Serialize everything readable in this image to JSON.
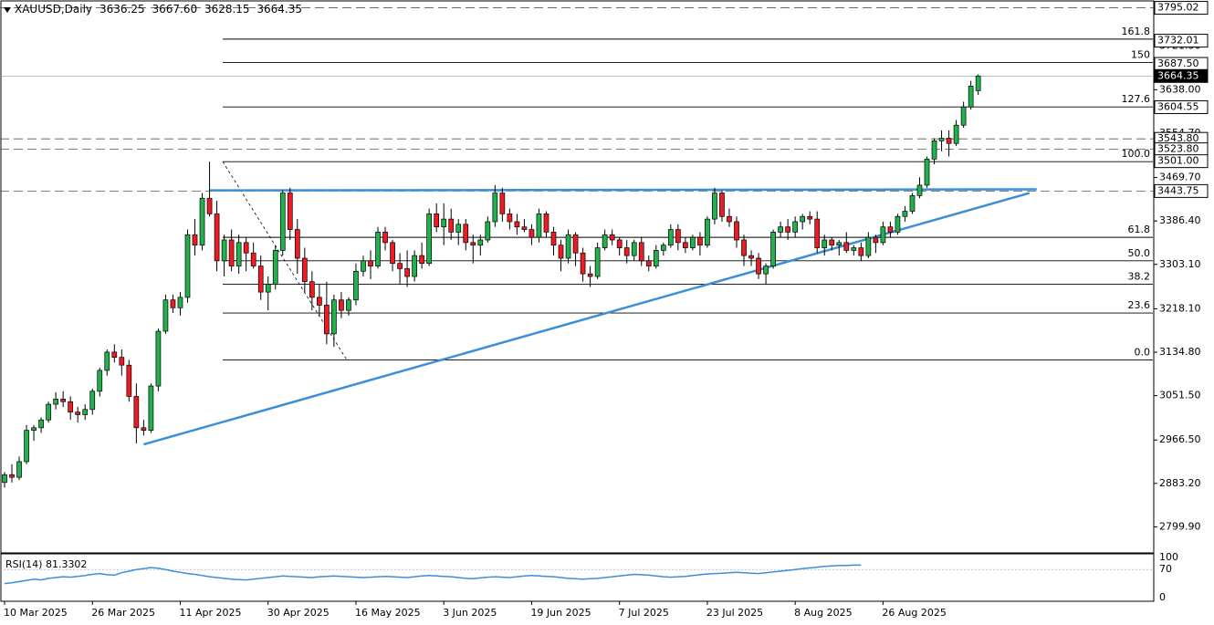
{
  "header": {
    "symbol": "XAUUSD,Daily",
    "open": "3636.25",
    "high": "3667.60",
    "low": "3628.15",
    "close": "3664.35"
  },
  "rsi": {
    "label": "RSI(14) 81.3302",
    "levels": [
      "100",
      "70",
      "0"
    ],
    "values": [
      35,
      37,
      40,
      43,
      46,
      44,
      48,
      50,
      52,
      51,
      53,
      55,
      58,
      60,
      57,
      56,
      62,
      66,
      70,
      72,
      75,
      73,
      70,
      66,
      63,
      60,
      58,
      55,
      52,
      50,
      48,
      46,
      45,
      44,
      46,
      48,
      50,
      52,
      54,
      53,
      52,
      51,
      50,
      52,
      53,
      54,
      53,
      52,
      51,
      50,
      51,
      52,
      53,
      52,
      51,
      50,
      52,
      54,
      55,
      54,
      53,
      52,
      50,
      48,
      47,
      49,
      51,
      52,
      51,
      50,
      52,
      54,
      55,
      54,
      53,
      52,
      50,
      48,
      47,
      46,
      47,
      48,
      50,
      52,
      54,
      56,
      58,
      57,
      56,
      54,
      52,
      51,
      52,
      53,
      55,
      57,
      59,
      60,
      61,
      62,
      63,
      62,
      61,
      60,
      62,
      64,
      66,
      68,
      70,
      72,
      74,
      76,
      78,
      79,
      80,
      80,
      81,
      81
    ]
  },
  "colors": {
    "bull": "#22b14c",
    "bear": "#ed1c24",
    "trend": "#3a8fd9",
    "rsi": "#3a8fd9"
  },
  "chart_data": {
    "type": "candlestick",
    "symbol": "XAUUSD",
    "timeframe": "Daily",
    "ylim": [
      2750,
      3810
    ],
    "y_ticks": [
      "3795.02",
      "3721.30",
      "3638.00",
      "3554.70",
      "3469.70",
      "3386.40",
      "3303.10",
      "3218.10",
      "3134.80",
      "3051.50",
      "2966.50",
      "2883.20",
      "2799.90"
    ],
    "x_labels": [
      "10 Mar 2025",
      "26 Mar 2025",
      "11 Apr 2025",
      "30 Apr 2025",
      "16 May 2025",
      "3 Jun 2025",
      "19 Jun 2025",
      "7 Jul 2025",
      "23 Jul 2025",
      "8 Aug 2025",
      "26 Aug 2025"
    ],
    "price_tags": [
      {
        "label": "3795.02",
        "value": 3795.02,
        "style": "dashed",
        "highlight": false
      },
      {
        "label": "3732.01",
        "value": 3732.01,
        "style": "solid",
        "highlight": false
      },
      {
        "label": "3687.50",
        "value": 3687.5,
        "style": "solid",
        "highlight": false
      },
      {
        "label": "3664.35",
        "value": 3664.35,
        "style": "current",
        "highlight": true
      },
      {
        "label": "3604.55",
        "value": 3604.55,
        "style": "solid",
        "highlight": false
      },
      {
        "label": "3543.80",
        "value": 3543.8,
        "style": "dashed",
        "highlight": false
      },
      {
        "label": "3523.80",
        "value": 3523.8,
        "style": "dashed",
        "highlight": false
      },
      {
        "label": "3501.00",
        "value": 3501.0,
        "style": "solid",
        "highlight": false
      },
      {
        "label": "3443.75",
        "value": 3443.75,
        "style": "dashed",
        "highlight": false
      }
    ],
    "fibonacci": {
      "high": 3500.1,
      "low": 3120.0,
      "levels": [
        {
          "label": "161.8",
          "value": 3735
        },
        {
          "label": "150",
          "value": 3690
        },
        {
          "label": "127.6",
          "value": 3605
        },
        {
          "label": "100.0",
          "value": 3500
        },
        {
          "label": "61.8",
          "value": 3355
        },
        {
          "label": "50.0",
          "value": 3310
        },
        {
          "label": "38.2",
          "value": 3265
        },
        {
          "label": "23.6",
          "value": 3210
        },
        {
          "label": "0.0",
          "value": 3120
        }
      ]
    },
    "trendlines": [
      {
        "name": "resistance",
        "from": {
          "bar": 28,
          "value": 3445
        },
        "to": {
          "bar": 141,
          "value": 3447
        }
      },
      {
        "name": "support",
        "from": {
          "bar": 19,
          "value": 2958
        },
        "to": {
          "bar": 140,
          "value": 3440
        }
      }
    ],
    "candles": [
      [
        2885,
        2905,
        2875,
        2900
      ],
      [
        2900,
        2920,
        2885,
        2895
      ],
      [
        2895,
        2935,
        2890,
        2925
      ],
      [
        2925,
        2995,
        2920,
        2985
      ],
      [
        2985,
        2995,
        2965,
        2990
      ],
      [
        2990,
        3010,
        2980,
        3005
      ],
      [
        3005,
        3040,
        3000,
        3035
      ],
      [
        3035,
        3058,
        3025,
        3045
      ],
      [
        3045,
        3060,
        3030,
        3040
      ],
      [
        3040,
        3050,
        3005,
        3020
      ],
      [
        3020,
        3030,
        3000,
        3015
      ],
      [
        3015,
        3035,
        3005,
        3025
      ],
      [
        3025,
        3065,
        3015,
        3060
      ],
      [
        3060,
        3105,
        3050,
        3100
      ],
      [
        3100,
        3140,
        3090,
        3135
      ],
      [
        3135,
        3150,
        3115,
        3125
      ],
      [
        3125,
        3140,
        3090,
        3110
      ],
      [
        3110,
        3120,
        3040,
        3050
      ],
      [
        3050,
        3075,
        2960,
        2990
      ],
      [
        2990,
        3005,
        2975,
        2985
      ],
      [
        2985,
        3075,
        2980,
        3070
      ],
      [
        3070,
        3180,
        3060,
        3175
      ],
      [
        3175,
        3245,
        3170,
        3235
      ],
      [
        3235,
        3245,
        3210,
        3220
      ],
      [
        3220,
        3250,
        3205,
        3240
      ],
      [
        3240,
        3370,
        3230,
        3360
      ],
      [
        3360,
        3390,
        3320,
        3340
      ],
      [
        3340,
        3440,
        3330,
        3430
      ],
      [
        3430,
        3500,
        3395,
        3400
      ],
      [
        3400,
        3425,
        3290,
        3310
      ],
      [
        3310,
        3360,
        3280,
        3350
      ],
      [
        3350,
        3370,
        3290,
        3300
      ],
      [
        3300,
        3360,
        3285,
        3345
      ],
      [
        3345,
        3355,
        3290,
        3325
      ],
      [
        3325,
        3345,
        3295,
        3300
      ],
      [
        3300,
        3320,
        3235,
        3250
      ],
      [
        3250,
        3280,
        3215,
        3265
      ],
      [
        3265,
        3340,
        3255,
        3330
      ],
      [
        3330,
        3445,
        3320,
        3440
      ],
      [
        3440,
        3450,
        3350,
        3370
      ],
      [
        3370,
        3390,
        3285,
        3315
      ],
      [
        3315,
        3335,
        3250,
        3270
      ],
      [
        3270,
        3290,
        3215,
        3240
      ],
      [
        3240,
        3265,
        3205,
        3225
      ],
      [
        3225,
        3270,
        3150,
        3170
      ],
      [
        3170,
        3245,
        3145,
        3235
      ],
      [
        3235,
        3250,
        3200,
        3215
      ],
      [
        3215,
        3240,
        3205,
        3235
      ],
      [
        3235,
        3305,
        3225,
        3290
      ],
      [
        3290,
        3320,
        3280,
        3310
      ],
      [
        3310,
        3330,
        3275,
        3300
      ],
      [
        3300,
        3375,
        3295,
        3365
      ],
      [
        3365,
        3375,
        3330,
        3345
      ],
      [
        3345,
        3350,
        3290,
        3305
      ],
      [
        3305,
        3325,
        3265,
        3295
      ],
      [
        3295,
        3330,
        3260,
        3280
      ],
      [
        3280,
        3330,
        3270,
        3320
      ],
      [
        3320,
        3345,
        3295,
        3305
      ],
      [
        3305,
        3410,
        3300,
        3400
      ],
      [
        3400,
        3420,
        3365,
        3375
      ],
      [
        3375,
        3420,
        3340,
        3390
      ],
      [
        3390,
        3410,
        3350,
        3365
      ],
      [
        3365,
        3390,
        3340,
        3380
      ],
      [
        3380,
        3390,
        3330,
        3345
      ],
      [
        3345,
        3360,
        3305,
        3340
      ],
      [
        3340,
        3360,
        3320,
        3350
      ],
      [
        3350,
        3395,
        3345,
        3385
      ],
      [
        3385,
        3455,
        3375,
        3440
      ],
      [
        3440,
        3450,
        3385,
        3400
      ],
      [
        3400,
        3410,
        3370,
        3385
      ],
      [
        3385,
        3400,
        3360,
        3375
      ],
      [
        3375,
        3390,
        3365,
        3370
      ],
      [
        3370,
        3380,
        3340,
        3355
      ],
      [
        3355,
        3410,
        3345,
        3400
      ],
      [
        3400,
        3405,
        3355,
        3365
      ],
      [
        3365,
        3375,
        3320,
        3340
      ],
      [
        3340,
        3350,
        3290,
        3315
      ],
      [
        3315,
        3370,
        3305,
        3360
      ],
      [
        3360,
        3365,
        3300,
        3325
      ],
      [
        3325,
        3335,
        3270,
        3285
      ],
      [
        3285,
        3300,
        3260,
        3280
      ],
      [
        3280,
        3345,
        3275,
        3335
      ],
      [
        3335,
        3370,
        3330,
        3360
      ],
      [
        3360,
        3370,
        3340,
        3350
      ],
      [
        3350,
        3355,
        3320,
        3335
      ],
      [
        3335,
        3350,
        3305,
        3320
      ],
      [
        3320,
        3350,
        3310,
        3345
      ],
      [
        3345,
        3355,
        3300,
        3310
      ],
      [
        3310,
        3320,
        3290,
        3300
      ],
      [
        3300,
        3340,
        3295,
        3330
      ],
      [
        3330,
        3345,
        3320,
        3340
      ],
      [
        3340,
        3380,
        3335,
        3370
      ],
      [
        3370,
        3380,
        3330,
        3345
      ],
      [
        3345,
        3355,
        3325,
        3335
      ],
      [
        3335,
        3360,
        3330,
        3355
      ],
      [
        3355,
        3365,
        3320,
        3340
      ],
      [
        3340,
        3395,
        3335,
        3390
      ],
      [
        3390,
        3450,
        3380,
        3440
      ],
      [
        3440,
        3445,
        3385,
        3395
      ],
      [
        3395,
        3410,
        3375,
        3385
      ],
      [
        3385,
        3395,
        3335,
        3350
      ],
      [
        3350,
        3360,
        3300,
        3320
      ],
      [
        3320,
        3330,
        3300,
        3315
      ],
      [
        3315,
        3325,
        3275,
        3285
      ],
      [
        3285,
        3305,
        3265,
        3300
      ],
      [
        3300,
        3370,
        3295,
        3365
      ],
      [
        3365,
        3385,
        3355,
        3375
      ],
      [
        3375,
        3390,
        3350,
        3365
      ],
      [
        3365,
        3395,
        3355,
        3385
      ],
      [
        3385,
        3400,
        3370,
        3395
      ],
      [
        3395,
        3405,
        3380,
        3390
      ],
      [
        3390,
        3405,
        3325,
        3335
      ],
      [
        3335,
        3360,
        3320,
        3350
      ],
      [
        3350,
        3355,
        3330,
        3340
      ],
      [
        3340,
        3350,
        3320,
        3345
      ],
      [
        3345,
        3365,
        3325,
        3330
      ],
      [
        3330,
        3340,
        3320,
        3335
      ],
      [
        3335,
        3345,
        3310,
        3320
      ],
      [
        3320,
        3365,
        3315,
        3355
      ],
      [
        3355,
        3360,
        3325,
        3345
      ],
      [
        3345,
        3385,
        3340,
        3375
      ],
      [
        3375,
        3385,
        3355,
        3365
      ],
      [
        3365,
        3400,
        3360,
        3395
      ],
      [
        3395,
        3415,
        3385,
        3405
      ],
      [
        3405,
        3440,
        3400,
        3435
      ],
      [
        3435,
        3470,
        3430,
        3455
      ],
      [
        3455,
        3510,
        3450,
        3505
      ],
      [
        3505,
        3545,
        3495,
        3540
      ],
      [
        3540,
        3560,
        3520,
        3545
      ],
      [
        3545,
        3560,
        3510,
        3535
      ],
      [
        3535,
        3580,
        3530,
        3570
      ],
      [
        3570,
        3615,
        3565,
        3605
      ],
      [
        3605,
        3655,
        3600,
        3645
      ],
      [
        3636.25,
        3667.6,
        3628.15,
        3664.35
      ]
    ]
  }
}
